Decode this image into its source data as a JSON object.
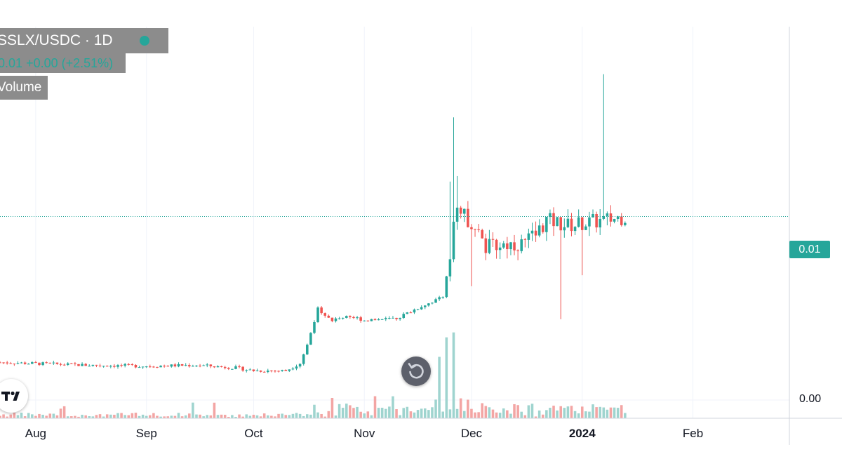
{
  "legend": {
    "symbol": "SSLX/USDC",
    "separator": "·",
    "interval": "1D",
    "close": "0.01",
    "change": "+0.00",
    "change_pct": "(+2.51%)",
    "volume_label": "Volume",
    "status_color": "#26a69a"
  },
  "price_axis": {
    "current_price_label": "0.01",
    "zero_label": "0.00"
  },
  "colors": {
    "up": "#26a69a",
    "down": "#ef5350",
    "volume_up": "#9fd4cf",
    "volume_down": "#f3a5a4",
    "grid": "#f0f3fa"
  },
  "controls": {
    "reset_icon": "reset-chart-icon",
    "logo_icon": "tradingview-logo-icon"
  },
  "chart_data": {
    "type": "candlestick",
    "title": "SSLX/USDC · 1D",
    "x_axis_labels": [
      "Aug",
      "Sep",
      "Oct",
      "Nov",
      "Dec",
      "2024",
      "Feb"
    ],
    "x_axis_label_dates": [
      "2023-08-01",
      "2023-09-01",
      "2023-10-01",
      "2023-11-01",
      "2023-12-01",
      "2024-01-01",
      "2024-02-01"
    ],
    "x_range": [
      "2023-07-22",
      "2024-02-28"
    ],
    "y_labels": [
      "0.01",
      "0.00"
    ],
    "y_range": [
      0.0,
      0.0195
    ],
    "last_price": 0.01,
    "grid": true,
    "legend_position": "top-left",
    "anchors": [
      {
        "date": "2023-07-22",
        "price": 0.00205
      },
      {
        "date": "2023-08-15",
        "price": 0.0019
      },
      {
        "date": "2023-09-01",
        "price": 0.00185
      },
      {
        "date": "2023-09-15",
        "price": 0.0019
      },
      {
        "date": "2023-09-26",
        "price": 0.00175
      },
      {
        "date": "2023-10-01",
        "price": 0.0016
      },
      {
        "date": "2023-10-10",
        "price": 0.0016
      },
      {
        "date": "2023-10-14",
        "price": 0.002
      },
      {
        "date": "2023-10-16",
        "price": 0.003
      },
      {
        "date": "2023-10-19",
        "price": 0.005
      },
      {
        "date": "2023-10-23",
        "price": 0.0043
      },
      {
        "date": "2023-10-27",
        "price": 0.0046
      },
      {
        "date": "2023-11-01",
        "price": 0.00435
      },
      {
        "date": "2023-11-10",
        "price": 0.00445
      },
      {
        "date": "2023-11-18",
        "price": 0.0052
      },
      {
        "date": "2023-11-23",
        "price": 0.0056
      },
      {
        "date": "2023-11-25",
        "price": 0.008
      },
      {
        "date": "2023-11-26",
        "price": 0.01
      },
      {
        "date": "2023-11-28",
        "price": 0.0102
      },
      {
        "date": "2023-12-02",
        "price": 0.0095
      },
      {
        "date": "2023-12-05",
        "price": 0.0083
      },
      {
        "date": "2023-12-10",
        "price": 0.0085
      },
      {
        "date": "2023-12-15",
        "price": 0.0085
      },
      {
        "date": "2023-12-19",
        "price": 0.009
      },
      {
        "date": "2023-12-22",
        "price": 0.0098
      },
      {
        "date": "2023-12-28",
        "price": 0.0095
      },
      {
        "date": "2024-01-04",
        "price": 0.0097
      },
      {
        "date": "2024-01-08",
        "price": 0.0098
      },
      {
        "date": "2024-01-13",
        "price": 0.01
      }
    ],
    "spikes": [
      {
        "date": "2023-11-26",
        "high": 0.0154
      },
      {
        "date": "2023-11-25",
        "high": 0.0119
      },
      {
        "date": "2023-11-27",
        "high": 0.0122
      },
      {
        "date": "2023-12-01",
        "low": 0.0062
      },
      {
        "date": "2023-12-26",
        "low": 0.0044
      },
      {
        "date": "2024-01-01",
        "low": 0.0068
      },
      {
        "date": "2024-01-07",
        "high": 0.01775
      },
      {
        "date": "2024-01-06",
        "high": 0.0104
      }
    ],
    "volume": {
      "max_label": "",
      "peak_dates": [
        "2023-11-22",
        "2023-11-24",
        "2023-11-26"
      ]
    }
  }
}
